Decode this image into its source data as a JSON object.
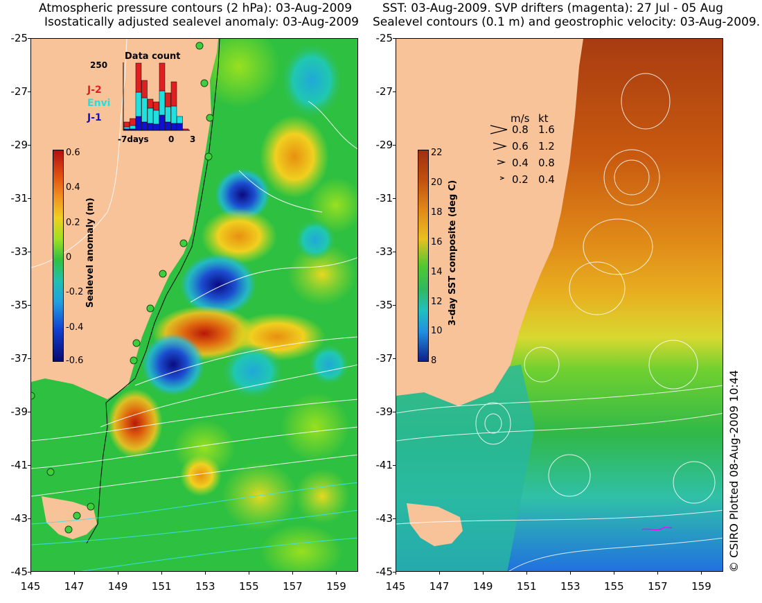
{
  "left": {
    "title_line1": "Atmospheric pressure contours (2 hPa): 03-Aug-2009",
    "title_line2": "Isostatically adjusted sealevel anomaly: 03-Aug-2009",
    "colorbar": {
      "label": "Sealevel anomaly (m)",
      "ticks": [
        "0.6",
        "0.4",
        "0.2",
        "0",
        "-0.2",
        "-0.4",
        "-0.6"
      ]
    },
    "inset": {
      "title": "Data count",
      "max_label": "250",
      "xticks": [
        "-7days",
        "0",
        "3"
      ],
      "legend": [
        {
          "label": "J-2",
          "color": "#e02020"
        },
        {
          "label": "Envi",
          "color": "#20e0e0"
        },
        {
          "label": "J-1",
          "color": "#1010d0"
        }
      ]
    }
  },
  "right": {
    "title_line1": "SST: 03-Aug-2009. SVP drifters (magenta): 27 Jul - 05 Aug",
    "title_line2": "Sealevel contours (0.1 m) and geostrophic velocity: 03-Aug-2009.",
    "colorbar": {
      "label": "3-day SST composite (deg C)",
      "ticks": [
        "22",
        "20",
        "18",
        "16",
        "14",
        "12",
        "10",
        "8"
      ]
    },
    "velocity_legend": {
      "header_ms": "m/s",
      "header_kt": "kt",
      "rows": [
        {
          "ms": "0.8",
          "kt": "1.6"
        },
        {
          "ms": "0.6",
          "kt": "1.2"
        },
        {
          "ms": "0.4",
          "kt": "0.8"
        },
        {
          "ms": "0.2",
          "kt": "0.4"
        }
      ]
    }
  },
  "axes": {
    "y_ticks": [
      "-25",
      "-27",
      "-29",
      "-31",
      "-33",
      "-35",
      "-37",
      "-39",
      "-41",
      "-43",
      "-45"
    ],
    "x_ticks": [
      "145",
      "147",
      "149",
      "151",
      "153",
      "155",
      "157",
      "159"
    ]
  },
  "credit": "© CSIRO Plotted 08-Aug-2009 10:44",
  "colors": {
    "land": "#f9c39a",
    "ocean_green": "#3cc83c"
  }
}
